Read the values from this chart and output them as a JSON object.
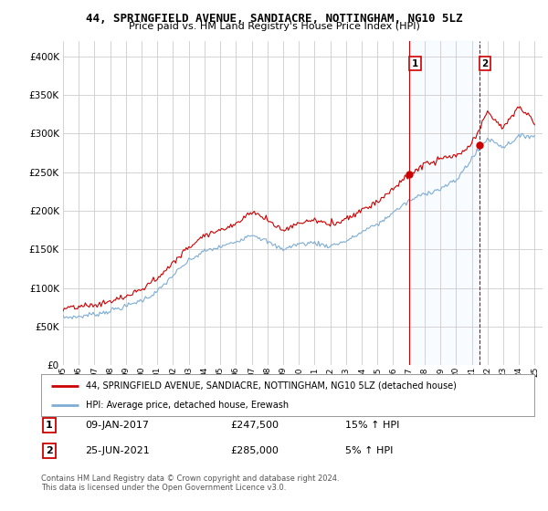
{
  "title": "44, SPRINGFIELD AVENUE, SANDIACRE, NOTTINGHAM, NG10 5LZ",
  "subtitle": "Price paid vs. HM Land Registry's House Price Index (HPI)",
  "legend_line1": "44, SPRINGFIELD AVENUE, SANDIACRE, NOTTINGHAM, NG10 5LZ (detached house)",
  "legend_line2": "HPI: Average price, detached house, Erewash",
  "annotation1": {
    "num": "1",
    "date": "09-JAN-2017",
    "price": "£247,500",
    "hpi": "15% ↑ HPI",
    "year": 2017.03
  },
  "annotation2": {
    "num": "2",
    "date": "25-JUN-2021",
    "price": "£285,000",
    "hpi": "5% ↑ HPI",
    "year": 2021.49
  },
  "footnote1": "Contains HM Land Registry data © Crown copyright and database right 2024.",
  "footnote2": "This data is licensed under the Open Government Licence v3.0.",
  "red_color": "#cc0000",
  "blue_color": "#7eadd4",
  "shade_color": "#ddeeff",
  "ylim": [
    0,
    420000
  ],
  "yticks": [
    0,
    50000,
    100000,
    150000,
    200000,
    250000,
    300000,
    350000,
    400000
  ],
  "background_color": "#ffffff",
  "grid_color": "#cccccc",
  "sale1_x": 2017.03,
  "sale1_y": 247500,
  "sale2_x": 2021.49,
  "sale2_y": 285000,
  "vline1_color": "#cc0000",
  "vline2_color": "#cc0000",
  "vline_style": "--",
  "xlim_start": 1995.0,
  "xlim_end": 2025.5
}
